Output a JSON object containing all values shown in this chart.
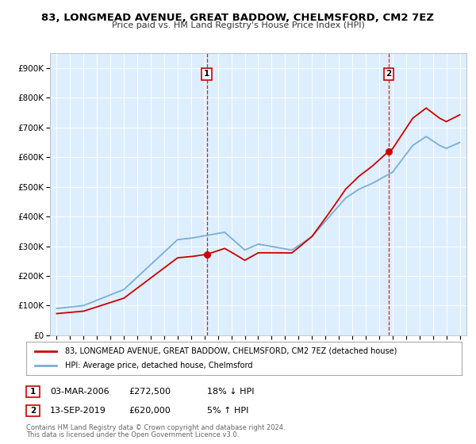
{
  "title": "83, LONGMEAD AVENUE, GREAT BADDOW, CHELMSFORD, CM2 7EZ",
  "subtitle": "Price paid vs. HM Land Registry's House Price Index (HPI)",
  "ylabel_ticks": [
    "£0",
    "£100K",
    "£200K",
    "£300K",
    "£400K",
    "£500K",
    "£600K",
    "£700K",
    "£800K",
    "£900K"
  ],
  "ytick_values": [
    0,
    100000,
    200000,
    300000,
    400000,
    500000,
    600000,
    700000,
    800000,
    900000
  ],
  "ylim": [
    0,
    950000
  ],
  "xlim_start": 1994.5,
  "xlim_end": 2025.5,
  "hpi_color": "#7aaed6",
  "price_color": "#cc0000",
  "legend_label_red": "83, LONGMEAD AVENUE, GREAT BADDOW, CHELMSFORD, CM2 7EZ (detached house)",
  "legend_label_blue": "HPI: Average price, detached house, Chelmsford",
  "transaction1_date": "03-MAR-2006",
  "transaction1_price": "£272,500",
  "transaction1_info": "18% ↓ HPI",
  "transaction1_year": 2006.17,
  "transaction1_value": 272500,
  "transaction2_date": "13-SEP-2019",
  "transaction2_price": "£620,000",
  "transaction2_info": "5% ↑ HPI",
  "transaction2_year": 2019.71,
  "transaction2_value": 620000,
  "footer_line1": "Contains HM Land Registry data © Crown copyright and database right 2024.",
  "footer_line2": "This data is licensed under the Open Government Licence v3.0.",
  "background_color": "#ffffff",
  "plot_bg_color": "#ddeeff"
}
